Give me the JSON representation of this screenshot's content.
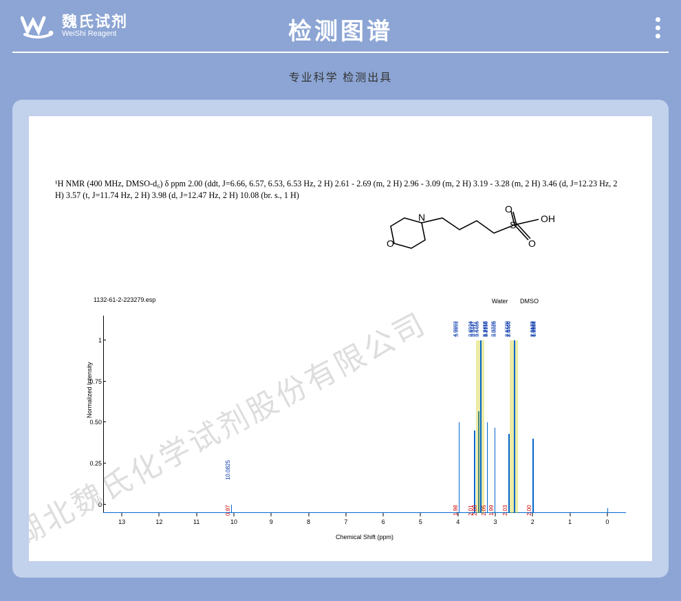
{
  "header": {
    "logo_cn": "魏氏试剂",
    "logo_en": "WeiShi Reagent",
    "title": "检测图谱",
    "subtitle": "专业科学 检测出具"
  },
  "nmr_description": "¹H NMR (400 MHz, DMSO-d₆) δ ppm 2.00 (ddt, J=6.66, 6.57, 6.53, 6.53 Hz, 2 H) 2.61 - 2.69 (m, 2 H) 2.96 - 3.09 (m, 2 H) 3.19 - 3.28 (m, 2 H) 3.46 (d, J=12.23 Hz, 2 H) 3.57 (t, J=11.74 Hz, 2 H) 3.98 (d, J=12.47 Hz, 2 H) 10.08 (br. s., 1 H)",
  "file_name": "1132-61-2-223279.esp",
  "solvent_labels": {
    "water": "Water",
    "dmso": "DMSO"
  },
  "watermark_text": "湖北魏氏化学试剂股份有限公司",
  "chart": {
    "type": "nmr-spectrum",
    "x_label": "Chemical Shift (ppm)",
    "y_label": "Normalized Intensity",
    "x_range": [
      -0.5,
      13.5
    ],
    "y_range": [
      -0.05,
      1.15
    ],
    "x_ticks": [
      0,
      1,
      2,
      3,
      4,
      5,
      6,
      7,
      8,
      9,
      10,
      11,
      12,
      13
    ],
    "y_ticks": [
      0,
      0.25,
      0.5,
      0.75,
      1.0
    ],
    "baseline_color": "#0066cc",
    "highlight_color": "rgba(200,200,0,0.35)",
    "peak_label_color": "#0033aa",
    "integral_color": "#cc0000",
    "background_color": "#ffffff",
    "isolated_peak_label": {
      "ppm": 10.08,
      "text": "10.0825"
    },
    "peak_cluster_labels": [
      "4.0003",
      "3.9691",
      "3.6034",
      "3.5737",
      "3.5447",
      "3.4711",
      "3.4405",
      "3.2452",
      "3.2315",
      "3.2150",
      "3.0326",
      "3.0026",
      "2.6720",
      "2.6565",
      "2.6400",
      "2.0172",
      "2.0007",
      "1.9849",
      "1.9684"
    ],
    "peaks": [
      {
        "ppm": 10.08,
        "height": 0.05
      },
      {
        "ppm": 3.98,
        "height": 0.55
      },
      {
        "ppm": 3.57,
        "height": 0.5
      },
      {
        "ppm": 3.46,
        "height": 0.62
      },
      {
        "ppm": 3.4,
        "height": 1.05,
        "highlight": true
      },
      {
        "ppm": 3.23,
        "height": 0.55
      },
      {
        "ppm": 3.02,
        "height": 0.52
      },
      {
        "ppm": 2.65,
        "height": 0.48
      },
      {
        "ppm": 2.5,
        "height": 1.05,
        "highlight": true
      },
      {
        "ppm": 2.0,
        "height": 0.45
      },
      {
        "ppm": 0.0,
        "height": 0.03
      }
    ],
    "integrals": [
      {
        "ppm": 10.08,
        "value": "0.97"
      },
      {
        "ppm": 3.98,
        "value": "1.98"
      },
      {
        "ppm": 3.57,
        "value": "2.01"
      },
      {
        "ppm": 3.46,
        "value": "2.00"
      },
      {
        "ppm": 3.23,
        "value": "2.05"
      },
      {
        "ppm": 3.02,
        "value": "1.99"
      },
      {
        "ppm": 2.65,
        "value": "2.03"
      },
      {
        "ppm": 2.0,
        "value": "2.00"
      }
    ]
  },
  "molecule": {
    "svg_atoms": [
      "O",
      "N",
      "S",
      "O",
      "O",
      "OH"
    ],
    "stroke": "#000000"
  }
}
